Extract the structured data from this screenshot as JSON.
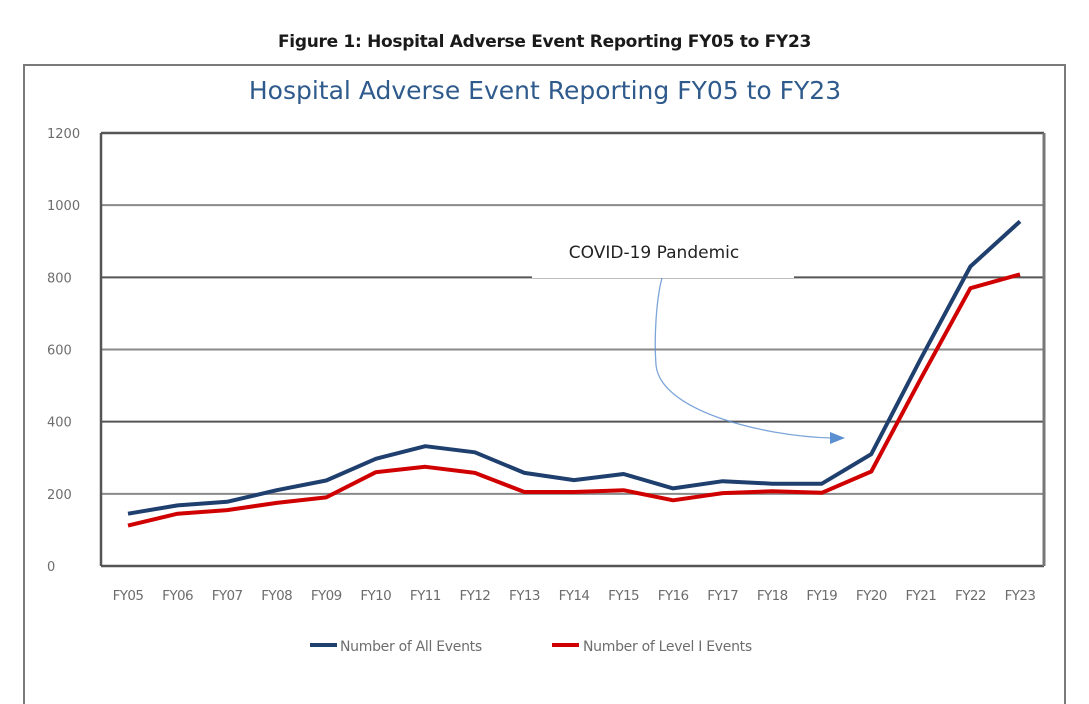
{
  "figure_caption": "Figure 1: Hospital Adverse Event Reporting FY05 to FY23",
  "chart_data": {
    "type": "line",
    "title": "Hospital Adverse Event Reporting FY05 to FY23",
    "xlabel": "",
    "ylabel": "",
    "ylim": [
      0,
      1200
    ],
    "yticks": [
      0,
      200,
      400,
      600,
      800,
      1000,
      1200
    ],
    "grid": true,
    "legend_position": "bottom",
    "categories": [
      "FY05",
      "FY06",
      "FY07",
      "FY08",
      "FY09",
      "FY10",
      "FY11",
      "FY12",
      "FY13",
      "FY14",
      "FY15",
      "FY16",
      "FY17",
      "FY18",
      "FY19",
      "FY20",
      "FY21",
      "FY22",
      "FY23"
    ],
    "series": [
      {
        "name": "Number of All Events",
        "color": "#1f3f6e",
        "values": [
          145,
          168,
          178,
          210,
          237,
          297,
          332,
          315,
          258,
          238,
          255,
          215,
          235,
          228,
          228,
          310,
          575,
          830,
          955
        ]
      },
      {
        "name": "Number of Level I Events",
        "color": "#d00000",
        "values": [
          112,
          145,
          155,
          175,
          190,
          260,
          275,
          258,
          205,
          205,
          210,
          182,
          202,
          207,
          203,
          262,
          520,
          770,
          808
        ]
      }
    ],
    "annotations": [
      {
        "text": "COVID-19 Pandemic",
        "points_to": "FY19-FY20",
        "arrow_color": "#5b8fcf"
      }
    ]
  }
}
